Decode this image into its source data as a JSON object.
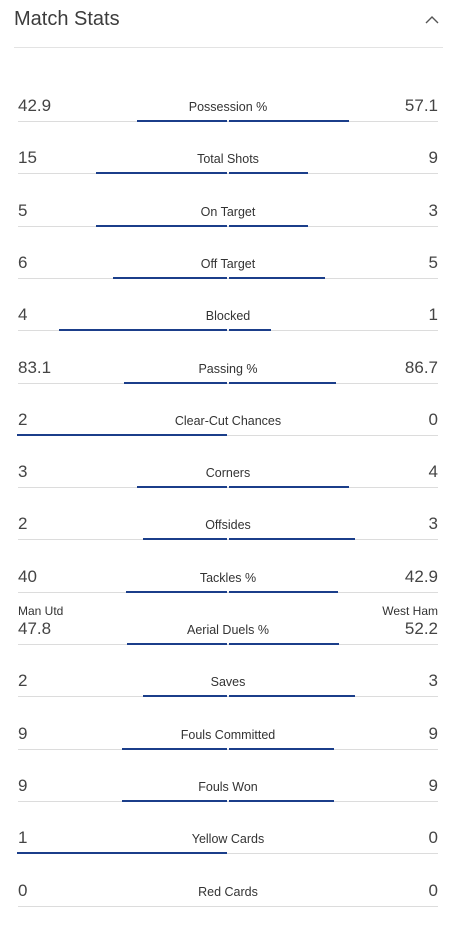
{
  "header": {
    "title": "Match Stats",
    "collapse_icon": "chevron-up-icon"
  },
  "teams": {
    "home": "Man Utd",
    "away": "West Ham"
  },
  "colors": {
    "bar": "#1b3e8a",
    "divider": "#dcdcdc"
  },
  "stats": [
    {
      "label": "Possession %",
      "home": "42.9",
      "away": "57.1",
      "home_share": 0.429,
      "away_share": 0.571
    },
    {
      "label": "Total Shots",
      "home": "15",
      "away": "9",
      "home_share": 0.625,
      "away_share": 0.375
    },
    {
      "label": "On Target",
      "home": "5",
      "away": "3",
      "home_share": 0.625,
      "away_share": 0.375
    },
    {
      "label": "Off Target",
      "home": "6",
      "away": "5",
      "home_share": 0.545,
      "away_share": 0.455
    },
    {
      "label": "Blocked",
      "home": "4",
      "away": "1",
      "home_share": 0.8,
      "away_share": 0.2
    },
    {
      "label": "Passing %",
      "home": "83.1",
      "away": "86.7",
      "home_share": 0.489,
      "away_share": 0.511
    },
    {
      "label": "Clear-Cut Chances",
      "home": "2",
      "away": "0",
      "home_share": 1.0,
      "away_share": 0.0
    },
    {
      "label": "Corners",
      "home": "3",
      "away": "4",
      "home_share": 0.429,
      "away_share": 0.571
    },
    {
      "label": "Offsides",
      "home": "2",
      "away": "3",
      "home_share": 0.4,
      "away_share": 0.6
    },
    {
      "label": "Tackles %",
      "home": "40",
      "away": "42.9",
      "home_share": 0.483,
      "away_share": 0.517
    },
    {
      "label": "Aerial Duels %",
      "home": "47.8",
      "away": "52.2",
      "home_share": 0.478,
      "away_share": 0.522
    },
    {
      "label": "Saves",
      "home": "2",
      "away": "3",
      "home_share": 0.4,
      "away_share": 0.6
    },
    {
      "label": "Fouls Committed",
      "home": "9",
      "away": "9",
      "home_share": 0.5,
      "away_share": 0.5
    },
    {
      "label": "Fouls Won",
      "home": "9",
      "away": "9",
      "home_share": 0.5,
      "away_share": 0.5
    },
    {
      "label": "Yellow Cards",
      "home": "1",
      "away": "0",
      "home_share": 1.0,
      "away_share": 0.0
    },
    {
      "label": "Red Cards",
      "home": "0",
      "away": "0",
      "home_share": 0.0,
      "away_share": 0.0
    }
  ]
}
